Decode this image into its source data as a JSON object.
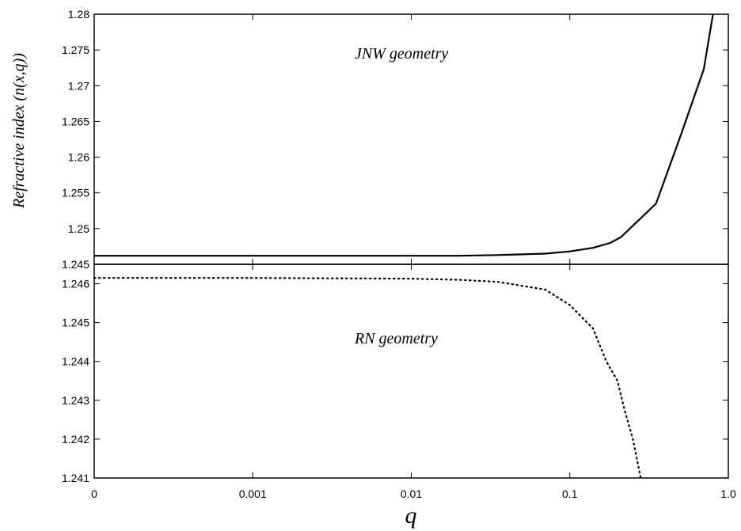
{
  "chart_data": [
    {
      "type": "line",
      "panel": "top",
      "annotation": "JNW geometry",
      "ylabel": "Refractive index (n(x,q))",
      "xscale": "log",
      "x_tick_labels": [
        "0",
        "0.001",
        "0.01",
        "0.1",
        "1.0"
      ],
      "y_tick_labels": [
        "1.245",
        "1.25",
        "1.255",
        "1.26",
        "1.265",
        "1.27",
        "1.275",
        "1.28"
      ],
      "y_ticks": [
        1.245,
        1.25,
        1.255,
        1.26,
        1.265,
        1.27,
        1.275,
        1.28
      ],
      "ylim": [
        1.245,
        1.28
      ],
      "series": [
        {
          "style": "solid",
          "x": [
            0.0001,
            0.001,
            0.01,
            0.02,
            0.035,
            0.07,
            0.1,
            0.14,
            0.18,
            0.21,
            0.35,
            0.5,
            0.7,
            0.8
          ],
          "y": [
            1.2462,
            1.2462,
            1.2462,
            1.2462,
            1.2463,
            1.2465,
            1.2468,
            1.2473,
            1.248,
            1.2488,
            1.2535,
            1.263,
            1.2723,
            1.28
          ]
        }
      ]
    },
    {
      "type": "line",
      "panel": "bottom",
      "annotation": "RN geometry",
      "xlabel": "q",
      "xscale": "log",
      "x_tick_labels": [
        "0",
        "0.001",
        "0.01",
        "0.1",
        "1.0"
      ],
      "y_tick_labels": [
        "1.241",
        "1.242",
        "1.243",
        "1.244",
        "1.245",
        "1.246"
      ],
      "y_ticks": [
        1.241,
        1.242,
        1.243,
        1.244,
        1.245,
        1.246
      ],
      "ylim": [
        1.241,
        1.2465
      ],
      "series": [
        {
          "style": "dotted",
          "x": [
            0.0001,
            0.001,
            0.01,
            0.02,
            0.035,
            0.07,
            0.1,
            0.14,
            0.17,
            0.2,
            0.22,
            0.25,
            0.28
          ],
          "y": [
            1.24615,
            1.24615,
            1.24613,
            1.2461,
            1.24605,
            1.24585,
            1.24545,
            1.24485,
            1.244,
            1.2435,
            1.2428,
            1.242,
            1.241
          ]
        }
      ]
    }
  ]
}
